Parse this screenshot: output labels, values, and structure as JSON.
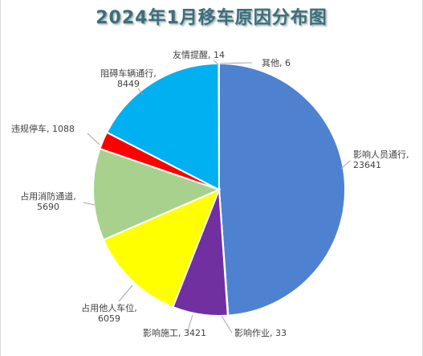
{
  "chart_data": {
    "type": "pie",
    "title": "2024年1月移车原因分布图",
    "slices": [
      {
        "label": "影响人员通行",
        "value": 23641,
        "display": "23641",
        "color": "#4f81d1"
      },
      {
        "label": "影响作业",
        "value": 33,
        "display": "33",
        "color": "#4472c4"
      },
      {
        "label": "影响施工",
        "value": 3421,
        "display": "3421",
        "color": "#7030a0"
      },
      {
        "label": "占用他人车位",
        "value": 6059,
        "display": "6059",
        "color": "#ffff00"
      },
      {
        "label": "占用消防通道",
        "value": 5690,
        "display": "5690",
        "color": "#a9d18e"
      },
      {
        "label": "违规停车",
        "value": 1088,
        "display": "1088",
        "color": "#ff0000"
      },
      {
        "label": "阻碍车辆通行",
        "value": 8449,
        "display": "8449",
        "color": "#00b0f0"
      },
      {
        "label": "友情提醒",
        "value": 14,
        "display": "14",
        "color": "#70ad47"
      },
      {
        "label": "其他",
        "value": 6,
        "display": "6",
        "color": "#5b9bd5"
      }
    ],
    "legend": "none"
  }
}
